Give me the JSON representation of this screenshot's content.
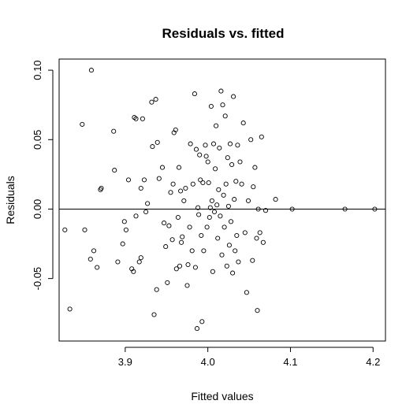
{
  "chart_data": {
    "type": "scatter",
    "title": "Residuals vs. fitted",
    "xlabel": "Fitted values",
    "ylabel": "Residuals",
    "xlim": [
      3.82,
      4.215
    ],
    "ylim": [
      -0.095,
      0.108
    ],
    "x_ticks": [
      3.9,
      4.0,
      4.1,
      4.2
    ],
    "x_tick_labels": [
      "3.9",
      "4.0",
      "4.1",
      "4.2"
    ],
    "y_ticks": [
      -0.05,
      0.0,
      0.05,
      0.1
    ],
    "y_tick_labels": [
      "-0.05",
      "0.00",
      "0.05",
      "0.10"
    ],
    "reference_line_y": 0.0,
    "grid": false,
    "points": [
      [
        3.827,
        -0.015
      ],
      [
        3.833,
        -0.072
      ],
      [
        3.848,
        0.061
      ],
      [
        3.851,
        -0.015
      ],
      [
        3.858,
        -0.036
      ],
      [
        3.859,
        0.1
      ],
      [
        3.862,
        -0.03
      ],
      [
        3.866,
        -0.042
      ],
      [
        3.87,
        0.014
      ],
      [
        3.871,
        0.015
      ],
      [
        3.886,
        0.056
      ],
      [
        3.887,
        0.028
      ],
      [
        3.891,
        -0.038
      ],
      [
        3.897,
        -0.025
      ],
      [
        3.899,
        -0.009
      ],
      [
        3.901,
        -0.015
      ],
      [
        3.904,
        0.021
      ],
      [
        3.908,
        -0.043
      ],
      [
        3.91,
        -0.045
      ],
      [
        3.911,
        0.066
      ],
      [
        3.913,
        0.065
      ],
      [
        3.913,
        -0.005
      ],
      [
        3.917,
        -0.038
      ],
      [
        3.919,
        0.015
      ],
      [
        3.919,
        -0.035
      ],
      [
        3.921,
        0.065
      ],
      [
        3.923,
        0.021
      ],
      [
        3.925,
        -0.002
      ],
      [
        3.927,
        0.004
      ],
      [
        3.932,
        0.077
      ],
      [
        3.933,
        0.045
      ],
      [
        3.935,
        -0.076
      ],
      [
        3.937,
        0.079
      ],
      [
        3.938,
        -0.058
      ],
      [
        3.939,
        0.048
      ],
      [
        3.941,
        0.022
      ],
      [
        3.945,
        0.03
      ],
      [
        3.947,
        -0.01
      ],
      [
        3.949,
        -0.027
      ],
      [
        3.951,
        -0.053
      ],
      [
        3.953,
        -0.012
      ],
      [
        3.955,
        0.012
      ],
      [
        3.957,
        -0.022
      ],
      [
        3.958,
        0.018
      ],
      [
        3.959,
        0.055
      ],
      [
        3.961,
        0.057
      ],
      [
        3.962,
        -0.043
      ],
      [
        3.964,
        -0.006
      ],
      [
        3.965,
        0.03
      ],
      [
        3.966,
        -0.041
      ],
      [
        3.967,
        0.013
      ],
      [
        3.968,
        -0.024
      ],
      [
        3.969,
        -0.02
      ],
      [
        3.971,
        0.006
      ],
      [
        3.973,
        0.015
      ],
      [
        3.975,
        -0.055
      ],
      [
        3.976,
        -0.04
      ],
      [
        3.978,
        -0.013
      ],
      [
        3.979,
        0.047
      ],
      [
        3.981,
        -0.03
      ],
      [
        3.982,
        0.018
      ],
      [
        3.984,
        0.083
      ],
      [
        3.985,
        -0.042
      ],
      [
        3.986,
        0.043
      ],
      [
        3.987,
        -0.086
      ],
      [
        3.988,
        0.001
      ],
      [
        3.989,
        -0.004
      ],
      [
        3.99,
        0.039
      ],
      [
        3.991,
        0.021
      ],
      [
        3.992,
        -0.019
      ],
      [
        3.993,
        -0.081
      ],
      [
        3.994,
        0.019
      ],
      [
        3.995,
        -0.03
      ],
      [
        3.997,
        0.046
      ],
      [
        3.998,
        0.038
      ],
      [
        3.999,
        -0.013
      ],
      [
        4.0,
        0.034
      ],
      [
        4.001,
        0.019
      ],
      [
        4.002,
        -0.006
      ],
      [
        4.003,
        0.001
      ],
      [
        4.004,
        0.074
      ],
      [
        4.005,
        0.006
      ],
      [
        4.006,
        -0.045
      ],
      [
        4.007,
        0.047
      ],
      [
        4.008,
        -0.002
      ],
      [
        4.009,
        0.029
      ],
      [
        4.01,
        0.06
      ],
      [
        4.011,
        0.003
      ],
      [
        4.012,
        -0.021
      ],
      [
        4.013,
        0.014
      ],
      [
        4.014,
        0.044
      ],
      [
        4.015,
        -0.005
      ],
      [
        4.016,
        0.085
      ],
      [
        4.017,
        -0.033
      ],
      [
        4.018,
        0.075
      ],
      [
        4.019,
        0.01
      ],
      [
        4.02,
        -0.013
      ],
      [
        4.021,
        0.067
      ],
      [
        4.022,
        0.018
      ],
      [
        4.023,
        -0.041
      ],
      [
        4.024,
        0.037
      ],
      [
        4.025,
        0.002
      ],
      [
        4.026,
        -0.026
      ],
      [
        4.027,
        0.047
      ],
      [
        4.028,
        -0.009
      ],
      [
        4.029,
        0.032
      ],
      [
        4.03,
        -0.046
      ],
      [
        4.031,
        0.081
      ],
      [
        4.032,
        0.007
      ],
      [
        4.033,
        -0.03
      ],
      [
        4.034,
        0.02
      ],
      [
        4.035,
        -0.019
      ],
      [
        4.036,
        0.046
      ],
      [
        4.037,
        -0.038
      ],
      [
        4.039,
        0.034
      ],
      [
        4.041,
        0.018
      ],
      [
        4.043,
        0.062
      ],
      [
        4.045,
        -0.017
      ],
      [
        4.047,
        -0.06
      ],
      [
        4.049,
        0.006
      ],
      [
        4.052,
        0.05
      ],
      [
        4.054,
        -0.037
      ],
      [
        4.055,
        0.016
      ],
      [
        4.057,
        0.03
      ],
      [
        4.059,
        -0.021
      ],
      [
        4.06,
        -0.073
      ],
      [
        4.061,
        0.0
      ],
      [
        4.063,
        -0.017
      ],
      [
        4.065,
        0.052
      ],
      [
        4.067,
        -0.024
      ],
      [
        4.07,
        -0.001
      ],
      [
        4.082,
        0.007
      ],
      [
        4.102,
        0.0
      ],
      [
        4.166,
        0.0
      ],
      [
        4.202,
        0.0
      ]
    ]
  }
}
